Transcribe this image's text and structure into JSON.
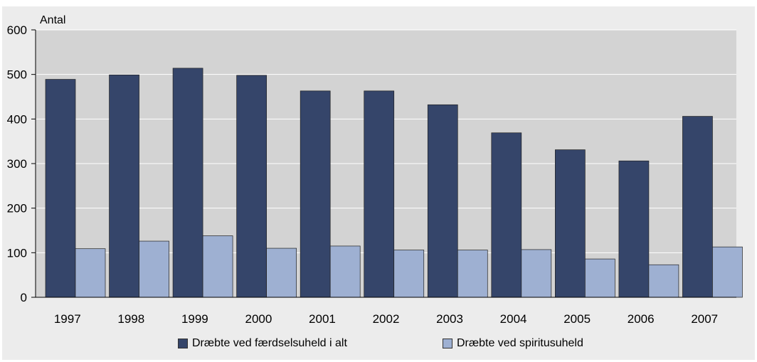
{
  "chart_data": {
    "type": "bar",
    "title": "",
    "ylabel": "Antal",
    "xlabel": "",
    "ylim": [
      0,
      600
    ],
    "yticks": [
      0,
      100,
      200,
      300,
      400,
      500,
      600
    ],
    "grid": true,
    "legend_position": "bottom",
    "categories": [
      "1997",
      "1998",
      "1999",
      "2000",
      "2001",
      "2002",
      "2003",
      "2004",
      "2005",
      "2006",
      "2007"
    ],
    "series": [
      {
        "name": "Dræbte ved færdselsuheld i alt",
        "color": "#35456a",
        "values": [
          489,
          499,
          514,
          498,
          463,
          463,
          432,
          369,
          331,
          306,
          406
        ]
      },
      {
        "name": "Dræbte ved spiritusuheld",
        "color": "#9eb0d2",
        "values": [
          109,
          126,
          138,
          110,
          115,
          106,
          106,
          107,
          86,
          73,
          113
        ]
      }
    ]
  }
}
